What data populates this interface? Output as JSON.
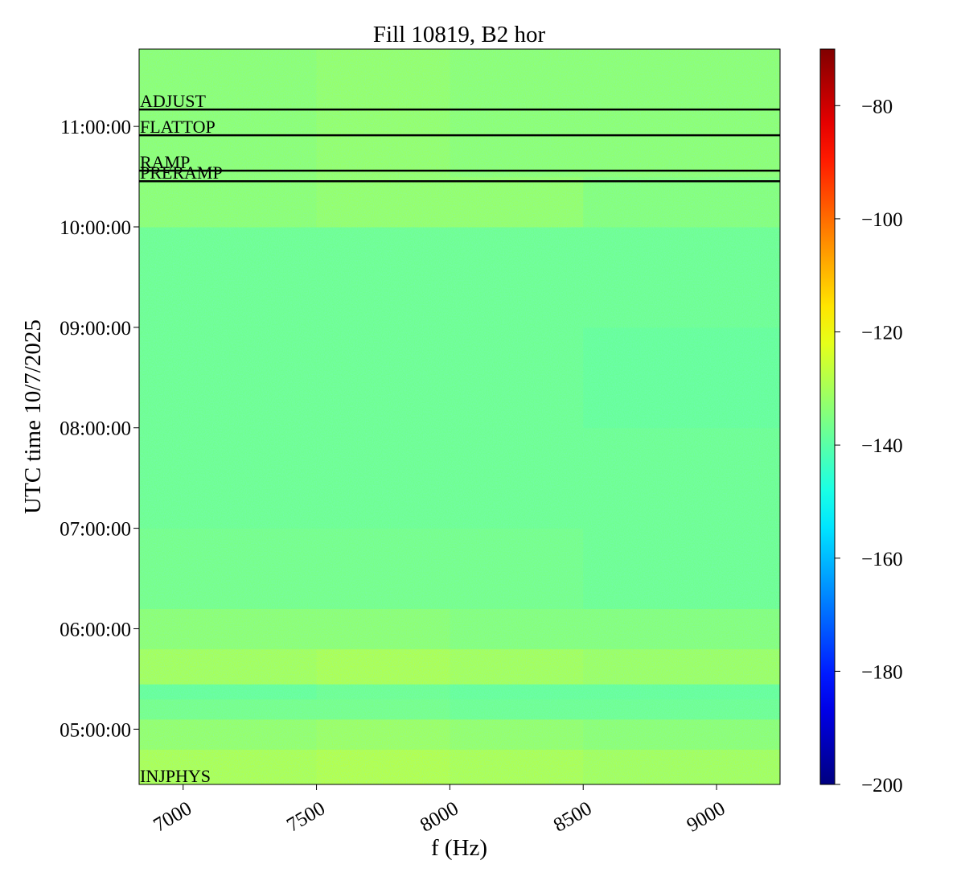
{
  "chart_data": {
    "type": "heatmap",
    "title": "Fill 10819, B2 hor",
    "xlabel": "f (Hz)",
    "ylabel": "UTC time 10/7/2025",
    "xlim": [
      6835,
      9238
    ],
    "xticks": [
      7000,
      7500,
      8000,
      8500,
      9000
    ],
    "ylim": [
      4.45,
      11.77
    ],
    "yticks": [
      {
        "value": 5,
        "label": "05:00:00"
      },
      {
        "value": 6,
        "label": "06:00:00"
      },
      {
        "value": 7,
        "label": "07:00:00"
      },
      {
        "value": 8,
        "label": "08:00:00"
      },
      {
        "value": 9,
        "label": "09:00:00"
      },
      {
        "value": 10,
        "label": "10:00:00"
      },
      {
        "value": 11,
        "label": "11:00:00"
      }
    ],
    "x_edges": [
      6835,
      7500,
      8000,
      8500,
      9238
    ],
    "y_edges": [
      4.45,
      4.8,
      5.1,
      5.3,
      5.45,
      5.8,
      6.2,
      7,
      8,
      9,
      10,
      10.5,
      11.77
    ],
    "z": [
      [
        -129,
        -128,
        -129,
        -130
      ],
      [
        -132,
        -131,
        -132,
        -133
      ],
      [
        -136,
        -136,
        -137,
        -137
      ],
      [
        -138,
        -137,
        -138,
        -138
      ],
      [
        -130,
        -129,
        -130,
        -131
      ],
      [
        -133,
        -133,
        -134,
        -134
      ],
      [
        -136,
        -136,
        -136,
        -137
      ],
      [
        -137,
        -137,
        -137,
        -137
      ],
      [
        -137,
        -137,
        -137,
        -138
      ],
      [
        -137,
        -137,
        -137,
        -137
      ],
      [
        -133,
        -132,
        -132,
        -134
      ],
      [
        -133,
        -132,
        -133,
        -133
      ]
    ],
    "colormap": "jet",
    "clim": [
      -200,
      -70
    ],
    "cticks": [
      {
        "value": -80,
        "label": "−80"
      },
      {
        "value": -100,
        "label": "−100"
      },
      {
        "value": -120,
        "label": "−120"
      },
      {
        "value": -140,
        "label": "−140"
      },
      {
        "value": -160,
        "label": "−160"
      },
      {
        "value": -180,
        "label": "−180"
      },
      {
        "value": -200,
        "label": "−200"
      }
    ],
    "events": [
      {
        "label": "ADJUST",
        "time": 11.168
      },
      {
        "label": "FLATTOP",
        "time": 10.912
      },
      {
        "label": "RAMP",
        "time": 10.56
      },
      {
        "label": "PRERAMP",
        "time": 10.455
      },
      {
        "label": "INJPHYS",
        "time": 4.45
      }
    ],
    "event_color": "#000000"
  }
}
